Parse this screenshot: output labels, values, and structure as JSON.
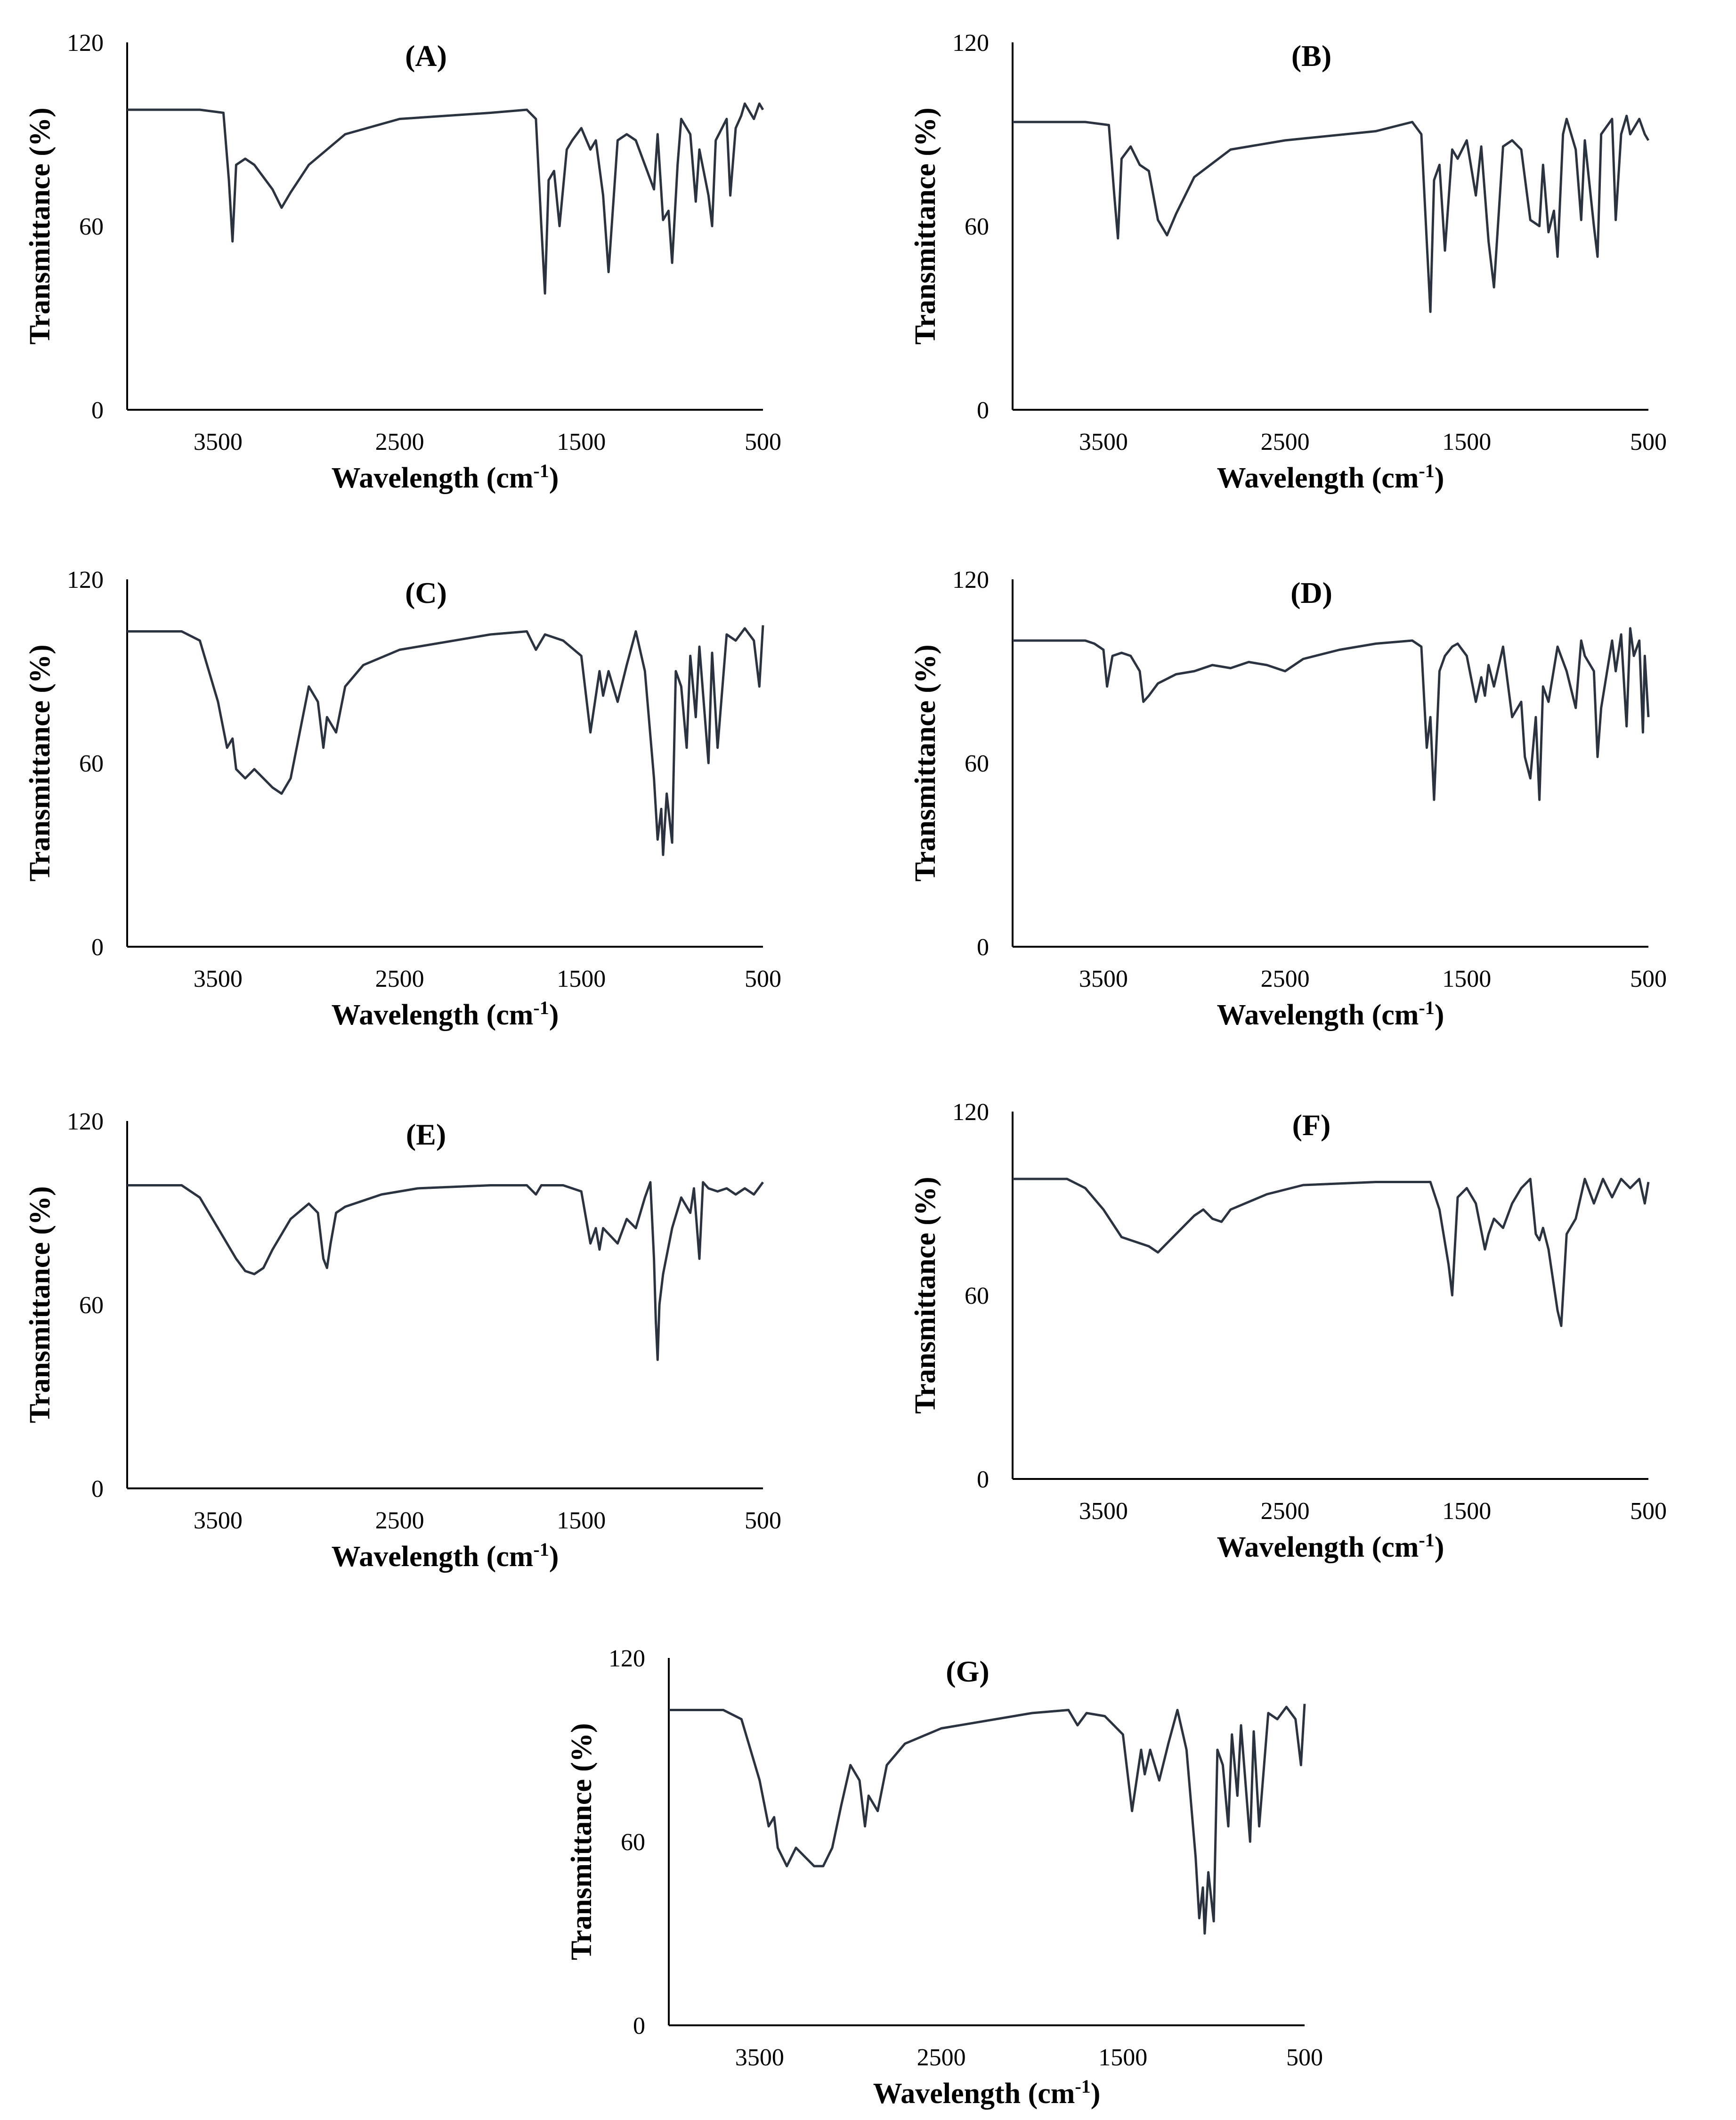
{
  "chart_data": [
    {
      "type": "line",
      "title": "(A)",
      "xlabel": "Wavelength (cm",
      "xlabel_sup": "-1",
      "xlabel_close": ")",
      "ylabel": "Transmittance (%)",
      "x_ticks": [
        "3500",
        "2500",
        "1500",
        "500"
      ],
      "y_ticks": [
        "0",
        "60",
        "120"
      ],
      "xlim": [
        4000,
        500
      ],
      "ylim": [
        0,
        120
      ],
      "x": [
        4000,
        3600,
        3470,
        3440,
        3420,
        3400,
        3350,
        3300,
        3250,
        3200,
        3150,
        3100,
        3000,
        2800,
        2500,
        2000,
        1800,
        1750,
        1720,
        1700,
        1680,
        1650,
        1620,
        1580,
        1550,
        1500,
        1450,
        1420,
        1380,
        1350,
        1300,
        1250,
        1200,
        1150,
        1100,
        1080,
        1050,
        1020,
        1000,
        970,
        950,
        900,
        870,
        850,
        800,
        780,
        760,
        700,
        680,
        650,
        620,
        600,
        550,
        520,
        500
      ],
      "values": [
        98,
        98,
        97,
        75,
        55,
        80,
        82,
        80,
        76,
        72,
        66,
        71,
        80,
        90,
        95,
        97,
        98,
        95,
        60,
        38,
        75,
        78,
        60,
        85,
        88,
        92,
        85,
        88,
        70,
        45,
        88,
        90,
        88,
        80,
        72,
        90,
        62,
        65,
        48,
        80,
        95,
        90,
        68,
        85,
        70,
        60,
        88,
        95,
        70,
        92,
        96,
        100,
        95,
        100,
        98
      ]
    },
    {
      "type": "line",
      "title": "(B)",
      "xlabel": "Wavelength (cm",
      "xlabel_sup": "-1",
      "xlabel_close": ")",
      "ylabel": "Transmittance (%)",
      "x_ticks": [
        "3500",
        "2500",
        "1500",
        "500"
      ],
      "y_ticks": [
        "0",
        "60",
        "120"
      ],
      "xlim": [
        4000,
        500
      ],
      "ylim": [
        0,
        120
      ],
      "x": [
        4000,
        3600,
        3470,
        3440,
        3420,
        3400,
        3350,
        3300,
        3250,
        3200,
        3150,
        3100,
        3000,
        2800,
        2500,
        2000,
        1800,
        1750,
        1720,
        1700,
        1680,
        1650,
        1620,
        1580,
        1550,
        1500,
        1450,
        1420,
        1380,
        1350,
        1300,
        1250,
        1200,
        1150,
        1100,
        1080,
        1050,
        1020,
        1000,
        970,
        950,
        900,
        870,
        850,
        800,
        780,
        760,
        700,
        680,
        650,
        620,
        600,
        550,
        520,
        500
      ],
      "values": [
        94,
        94,
        93,
        70,
        56,
        82,
        86,
        80,
        78,
        62,
        57,
        64,
        76,
        85,
        88,
        91,
        94,
        90,
        55,
        32,
        75,
        80,
        52,
        85,
        82,
        88,
        70,
        86,
        55,
        40,
        86,
        88,
        85,
        62,
        60,
        80,
        58,
        65,
        50,
        90,
        95,
        85,
        62,
        88,
        60,
        50,
        90,
        95,
        62,
        90,
        96,
        90,
        95,
        90,
        88
      ]
    },
    {
      "type": "line",
      "title": "(C)",
      "xlabel": "Wavelength (cm",
      "xlabel_sup": "-1",
      "xlabel_close": ")",
      "ylabel": "Transmittance (%)",
      "x_ticks": [
        "3500",
        "2500",
        "1500",
        "500"
      ],
      "y_ticks": [
        "0",
        "60",
        "120"
      ],
      "xlim": [
        4000,
        500
      ],
      "ylim": [
        0,
        120
      ],
      "x": [
        4000,
        3700,
        3600,
        3500,
        3450,
        3420,
        3400,
        3350,
        3300,
        3250,
        3200,
        3150,
        3100,
        3050,
        3000,
        2950,
        2920,
        2900,
        2850,
        2800,
        2700,
        2500,
        2000,
        1800,
        1750,
        1700,
        1600,
        1500,
        1450,
        1400,
        1380,
        1350,
        1300,
        1250,
        1200,
        1150,
        1100,
        1080,
        1060,
        1050,
        1030,
        1000,
        980,
        950,
        920,
        900,
        870,
        850,
        800,
        780,
        750,
        700,
        650,
        600,
        550,
        520,
        500
      ],
      "values": [
        103,
        103,
        100,
        80,
        65,
        68,
        58,
        55,
        58,
        55,
        52,
        50,
        55,
        70,
        85,
        80,
        65,
        75,
        70,
        85,
        92,
        97,
        102,
        103,
        97,
        102,
        100,
        95,
        70,
        90,
        82,
        90,
        80,
        92,
        103,
        90,
        55,
        35,
        45,
        30,
        50,
        34,
        90,
        85,
        65,
        95,
        75,
        98,
        60,
        96,
        65,
        102,
        100,
        104,
        100,
        85,
        105
      ]
    },
    {
      "type": "line",
      "title": "(D)",
      "xlabel": "Wavelength (cm",
      "xlabel_sup": "-1",
      "xlabel_close": ")",
      "ylabel": "Transmittance (%)",
      "x_ticks": [
        "3500",
        "2500",
        "1500",
        "500"
      ],
      "y_ticks": [
        "0",
        "60",
        "120"
      ],
      "xlim": [
        4000,
        500
      ],
      "ylim": [
        0,
        120
      ],
      "x": [
        4000,
        3600,
        3550,
        3500,
        3480,
        3450,
        3400,
        3350,
        3300,
        3280,
        3250,
        3200,
        3100,
        3000,
        2900,
        2800,
        2700,
        2600,
        2500,
        2400,
        2200,
        2000,
        1800,
        1750,
        1720,
        1700,
        1680,
        1650,
        1620,
        1580,
        1550,
        1500,
        1450,
        1420,
        1400,
        1380,
        1350,
        1300,
        1250,
        1200,
        1180,
        1150,
        1120,
        1100,
        1080,
        1050,
        1000,
        950,
        900,
        870,
        850,
        800,
        780,
        760,
        700,
        680,
        650,
        620,
        600,
        580,
        550,
        530,
        520,
        500
      ],
      "values": [
        100,
        100,
        99,
        97,
        85,
        95,
        96,
        95,
        90,
        80,
        82,
        86,
        89,
        90,
        92,
        91,
        93,
        92,
        90,
        94,
        97,
        99,
        100,
        98,
        65,
        75,
        48,
        90,
        95,
        98,
        99,
        95,
        80,
        88,
        82,
        92,
        85,
        98,
        75,
        80,
        62,
        55,
        75,
        48,
        85,
        80,
        98,
        90,
        78,
        100,
        95,
        90,
        62,
        78,
        100,
        90,
        102,
        72,
        104,
        95,
        100,
        70,
        95,
        75
      ]
    },
    {
      "type": "line",
      "title": "(E)",
      "xlabel": "Wavelength (cm",
      "xlabel_sup": "-1",
      "xlabel_close": ")",
      "ylabel": "Transmittance (%)",
      "x_ticks": [
        "3500",
        "2500",
        "1500",
        "500"
      ],
      "y_ticks": [
        "0",
        "60",
        "120"
      ],
      "xlim": [
        4000,
        500
      ],
      "ylim": [
        0,
        120
      ],
      "x": [
        4000,
        3700,
        3600,
        3500,
        3400,
        3350,
        3300,
        3250,
        3200,
        3100,
        3000,
        2950,
        2920,
        2900,
        2880,
        2850,
        2800,
        2600,
        2400,
        2000,
        1800,
        1750,
        1720,
        1700,
        1600,
        1500,
        1450,
        1420,
        1400,
        1380,
        1300,
        1250,
        1200,
        1150,
        1120,
        1100,
        1090,
        1080,
        1070,
        1050,
        1000,
        950,
        900,
        880,
        850,
        830,
        800,
        750,
        700,
        650,
        600,
        550,
        500
      ],
      "values": [
        99,
        99,
        95,
        85,
        75,
        71,
        70,
        72,
        78,
        88,
        93,
        90,
        75,
        72,
        80,
        90,
        92,
        96,
        98,
        99,
        99,
        96,
        99,
        99,
        99,
        97,
        80,
        85,
        78,
        85,
        80,
        88,
        85,
        95,
        100,
        75,
        55,
        42,
        60,
        70,
        85,
        95,
        90,
        98,
        75,
        100,
        98,
        97,
        98,
        96,
        98,
        96,
        100
      ]
    },
    {
      "type": "line",
      "title": "(F)",
      "xlabel": "Wavelength (cm",
      "xlabel_sup": "-1",
      "xlabel_close": ")",
      "ylabel": "Transmittance (%)",
      "x_ticks": [
        "3500",
        "2500",
        "1500",
        "500"
      ],
      "y_ticks": [
        "0",
        "60",
        "120"
      ],
      "xlim": [
        4000,
        500
      ],
      "ylim": [
        0,
        120
      ],
      "x": [
        4000,
        3700,
        3600,
        3500,
        3400,
        3300,
        3250,
        3200,
        3100,
        3000,
        2950,
        2900,
        2850,
        2800,
        2600,
        2400,
        2000,
        1800,
        1700,
        1650,
        1600,
        1580,
        1550,
        1500,
        1450,
        1400,
        1380,
        1350,
        1300,
        1250,
        1200,
        1150,
        1120,
        1100,
        1080,
        1050,
        1000,
        980,
        950,
        900,
        850,
        800,
        750,
        700,
        650,
        600,
        550,
        520,
        500
      ],
      "values": [
        98,
        98,
        95,
        88,
        79,
        77,
        76,
        74,
        80,
        86,
        88,
        85,
        84,
        88,
        93,
        96,
        97,
        97,
        97,
        88,
        70,
        60,
        92,
        95,
        90,
        75,
        80,
        85,
        82,
        90,
        95,
        98,
        80,
        78,
        82,
        75,
        55,
        50,
        80,
        85,
        98,
        90,
        98,
        92,
        98,
        95,
        98,
        90,
        97
      ]
    },
    {
      "type": "line",
      "title": "(G)",
      "xlabel": "Wavelength (cm",
      "xlabel_sup": "-1",
      "xlabel_close": ")",
      "ylabel": "Transmittance (%)",
      "x_ticks": [
        "3500",
        "2500",
        "1500",
        "500"
      ],
      "y_ticks": [
        "0",
        "60",
        "120"
      ],
      "xlim": [
        4000,
        500
      ],
      "ylim": [
        0,
        120
      ],
      "x": [
        4000,
        3700,
        3600,
        3500,
        3450,
        3420,
        3400,
        3350,
        3300,
        3250,
        3200,
        3150,
        3100,
        3050,
        3000,
        2950,
        2920,
        2900,
        2850,
        2800,
        2700,
        2500,
        2000,
        1800,
        1750,
        1700,
        1600,
        1500,
        1450,
        1400,
        1380,
        1350,
        1300,
        1250,
        1200,
        1150,
        1100,
        1080,
        1060,
        1050,
        1030,
        1000,
        980,
        950,
        920,
        900,
        870,
        850,
        800,
        780,
        750,
        700,
        650,
        600,
        550,
        520,
        500
      ],
      "values": [
        103,
        103,
        100,
        80,
        65,
        68,
        58,
        52,
        58,
        55,
        52,
        52,
        58,
        72,
        85,
        80,
        65,
        75,
        70,
        85,
        92,
        97,
        102,
        103,
        98,
        102,
        101,
        95,
        70,
        90,
        82,
        90,
        80,
        92,
        103,
        90,
        55,
        35,
        45,
        30,
        50,
        34,
        90,
        85,
        65,
        95,
        75,
        98,
        60,
        96,
        65,
        102,
        100,
        104,
        100,
        85,
        105
      ]
    }
  ]
}
